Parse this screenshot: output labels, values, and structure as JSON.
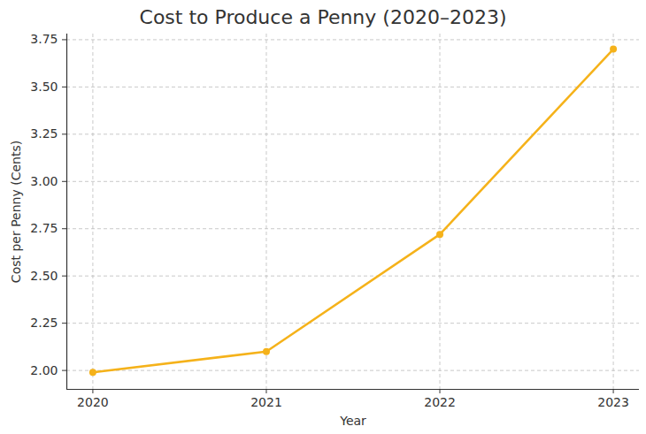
{
  "chart_data": {
    "type": "line",
    "title": "Cost to Produce a Penny (2020–2023)",
    "x_label": "Year",
    "y_label": "Cost per Penny (Cents)",
    "x": [
      2020,
      2021,
      2022,
      2023
    ],
    "values": [
      1.99,
      2.1,
      2.72,
      3.7
    ],
    "color": "#f5b21a",
    "marker": "circle",
    "line_style": "solid",
    "xlim": [
      2019.85,
      2023.15
    ],
    "xticks": [
      2020,
      2021,
      2022,
      2023
    ],
    "ylim": [
      1.9,
      3.78
    ],
    "yticks": [
      {
        "value": 2.0,
        "label": "2.00"
      },
      2.25,
      {
        "value": 2.5,
        "label": "2.50"
      },
      2.75,
      {
        "value": 3.0,
        "label": "3.00"
      },
      3.25,
      {
        "value": 3.5,
        "label": "3.50"
      },
      3.75
    ],
    "grid": true
  }
}
